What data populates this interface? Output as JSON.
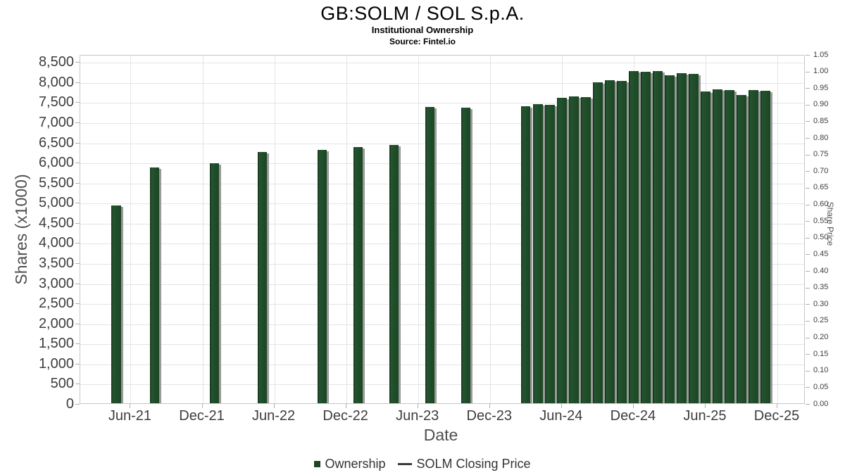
{
  "chart_data": {
    "type": "bar",
    "title": "GB:SOLM / SOL S.p.A.",
    "subtitle": "Institutional Ownership",
    "source": "Source: Fintel.io",
    "xlabel": "Date",
    "grid": true,
    "legend_position": "bottom",
    "colors": {
      "bar": "#1c4623",
      "bar_shadow": "#9a9a9a",
      "gridline": "#e4e4e4",
      "plot_border": "#c6c6c6",
      "tick_text": "#3d3d3d",
      "axis_title_text": "#4f4f4f",
      "legend_text": "#333333"
    },
    "y_left": {
      "label": "Shares (x1000)",
      "min": 0,
      "max": 8680,
      "tick_step": 500,
      "tick_top": 8500,
      "tick_labels": [
        "0",
        "500",
        "1,000",
        "1,500",
        "2,000",
        "2,500",
        "3,000",
        "3,500",
        "4,000",
        "4,500",
        "5,000",
        "5,500",
        "6,000",
        "6,500",
        "7,000",
        "7,500",
        "8,000",
        "8,500"
      ]
    },
    "y_right": {
      "label": "Share Price",
      "min": 0,
      "max": 1.05,
      "tick_step": 0.05,
      "tick_labels": [
        "0.00",
        "0.05",
        "0.10",
        "0.15",
        "0.20",
        "0.25",
        "0.30",
        "0.35",
        "0.40",
        "0.45",
        "0.50",
        "0.55",
        "0.60",
        "0.65",
        "0.70",
        "0.75",
        "0.80",
        "0.85",
        "0.90",
        "0.95",
        "1.00",
        "1.05"
      ]
    },
    "x_axis": {
      "min_offset": -4.2,
      "max_offset": 56.35,
      "ticks": [
        {
          "label": "Jun-21",
          "offset": 0
        },
        {
          "label": "Dec-21",
          "offset": 6
        },
        {
          "label": "Jun-22",
          "offset": 12
        },
        {
          "label": "Dec-22",
          "offset": 18
        },
        {
          "label": "Jun-23",
          "offset": 24
        },
        {
          "label": "Dec-23",
          "offset": 30
        },
        {
          "label": "Jun-24",
          "offset": 36
        },
        {
          "label": "Dec-24",
          "offset": 42
        },
        {
          "label": "Jun-25",
          "offset": 48
        },
        {
          "label": "Dec-25",
          "offset": 54
        }
      ]
    },
    "series": [
      {
        "name": "Ownership",
        "type": "column",
        "color": "#1c4623",
        "points": [
          {
            "date": "May-21",
            "offset": -1.2,
            "value": 4950
          },
          {
            "date": "Aug-21",
            "offset": 2,
            "value": 5900
          },
          {
            "date": "Jan-22",
            "offset": 7,
            "value": 6010
          },
          {
            "date": "May-22",
            "offset": 11,
            "value": 6280
          },
          {
            "date": "Oct-22",
            "offset": 16,
            "value": 6330
          },
          {
            "date": "Jan-23",
            "offset": 19,
            "value": 6400
          },
          {
            "date": "Apr-23",
            "offset": 22,
            "value": 6450
          },
          {
            "date": "Jul-23",
            "offset": 25,
            "value": 7400
          },
          {
            "date": "Oct-23",
            "offset": 28,
            "value": 7380
          },
          {
            "date": "Mar-24",
            "offset": 33,
            "value": 7420
          },
          {
            "date": "Apr-24",
            "offset": 34,
            "value": 7480
          },
          {
            "date": "May-24",
            "offset": 35,
            "value": 7460
          },
          {
            "date": "Jun-24",
            "offset": 36,
            "value": 7625
          },
          {
            "date": "Jul-24",
            "offset": 37,
            "value": 7660
          },
          {
            "date": "Aug-24",
            "offset": 38,
            "value": 7650
          },
          {
            "date": "Sep-24",
            "offset": 39,
            "value": 8010
          },
          {
            "date": "Oct-24",
            "offset": 40,
            "value": 8060
          },
          {
            "date": "Nov-24",
            "offset": 41,
            "value": 8055
          },
          {
            "date": "Dec-24",
            "offset": 42,
            "value": 8290
          },
          {
            "date": "Jan-25",
            "offset": 43,
            "value": 8285
          },
          {
            "date": "Feb-25",
            "offset": 44,
            "value": 8295
          },
          {
            "date": "Mar-25",
            "offset": 45,
            "value": 8190
          },
          {
            "date": "Apr-25",
            "offset": 46,
            "value": 8240
          },
          {
            "date": "May-25",
            "offset": 47,
            "value": 8230
          },
          {
            "date": "Jun-25",
            "offset": 48,
            "value": 7780
          },
          {
            "date": "Jul-25",
            "offset": 49,
            "value": 7840
          },
          {
            "date": "Aug-25",
            "offset": 50,
            "value": 7830
          },
          {
            "date": "Sep-25",
            "offset": 51,
            "value": 7700
          },
          {
            "date": "Oct-25",
            "offset": 52,
            "value": 7815
          },
          {
            "date": "Nov-25",
            "offset": 53,
            "value": 7805
          }
        ]
      },
      {
        "name": "SOLM Closing Price",
        "type": "line",
        "color": "#3b3b3b",
        "points": []
      }
    ]
  }
}
